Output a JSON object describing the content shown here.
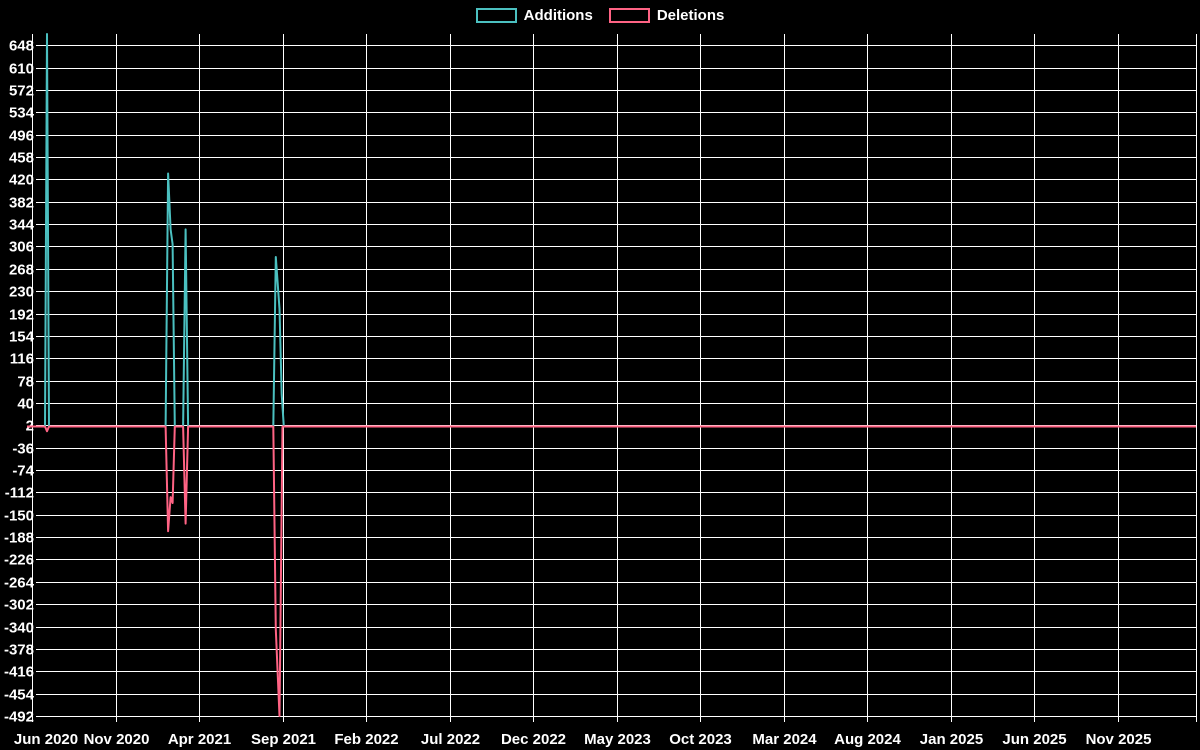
{
  "legend": {
    "position": "top",
    "items": [
      {
        "label": "Additions",
        "color": "#4bc0c0"
      },
      {
        "label": "Deletions",
        "color": "#ff6384"
      }
    ]
  },
  "chart_data": {
    "type": "line",
    "title": "",
    "background_color": "#000000",
    "grid_color": "#ffffff",
    "text_color": "#ffffff",
    "grid": true,
    "legend_position": "top",
    "x_axis": {
      "tick_labels": [
        "Jun 2020",
        "Nov 2020",
        "Apr 2021",
        "Sep 2021",
        "Feb 2022",
        "Jul 2022",
        "Dec 2022",
        "May 2023",
        "Oct 2023",
        "Mar 2024",
        "Aug 2024",
        "Jan 2025",
        "Jun 2025",
        "Nov 2025"
      ],
      "months_between_ticks": 5,
      "start_month": "Jun 2020",
      "end_month": "Nov 2025"
    },
    "y_axis": {
      "ticks": [
        648,
        610,
        572,
        534,
        496,
        458,
        420,
        382,
        344,
        306,
        268,
        230,
        192,
        154,
        116,
        78,
        40,
        2,
        -36,
        -74,
        -112,
        -150,
        -188,
        -226,
        -264,
        -302,
        -340,
        -378,
        -416,
        -454,
        -492
      ],
      "tick_step": 38,
      "min": -492,
      "max": 667
    },
    "series": [
      {
        "name": "Additions",
        "color": "#4bc0c0",
        "line_width": 2,
        "baseline_value": 0,
        "points": [
          {
            "month": -0.3,
            "value": 0
          },
          {
            "month": 0.78,
            "value": 0
          },
          {
            "month": 0.9,
            "value": 667
          },
          {
            "month": 1.02,
            "value": 0
          },
          {
            "month": 8.0,
            "value": 0
          },
          {
            "month": 8.15,
            "value": 430
          },
          {
            "month": 8.3,
            "value": 335
          },
          {
            "month": 8.42,
            "value": 310
          },
          {
            "month": 8.55,
            "value": 0
          },
          {
            "month": 9.05,
            "value": 0
          },
          {
            "month": 9.2,
            "value": 335
          },
          {
            "month": 9.35,
            "value": 0
          },
          {
            "month": 14.45,
            "value": 0
          },
          {
            "month": 14.6,
            "value": 288
          },
          {
            "month": 14.82,
            "value": 200
          },
          {
            "month": 14.95,
            "value": 55
          },
          {
            "month": 15.08,
            "value": 0
          },
          {
            "month": 69.7,
            "value": 0
          }
        ]
      },
      {
        "name": "Deletions",
        "color": "#ff6384",
        "line_width": 2,
        "baseline_value": 0,
        "points": [
          {
            "month": -0.3,
            "value": 0
          },
          {
            "month": 0.78,
            "value": 0
          },
          {
            "month": 0.9,
            "value": -8
          },
          {
            "month": 1.02,
            "value": 0
          },
          {
            "month": 8.0,
            "value": 0
          },
          {
            "month": 8.15,
            "value": -178
          },
          {
            "month": 8.3,
            "value": -120
          },
          {
            "month": 8.42,
            "value": -130
          },
          {
            "month": 8.55,
            "value": 0
          },
          {
            "month": 9.05,
            "value": 0
          },
          {
            "month": 9.2,
            "value": -165
          },
          {
            "month": 9.35,
            "value": 0
          },
          {
            "month": 14.45,
            "value": 0
          },
          {
            "month": 14.6,
            "value": -345
          },
          {
            "month": 14.82,
            "value": -492
          },
          {
            "month": 15.0,
            "value": 0
          },
          {
            "month": 69.7,
            "value": 0
          }
        ]
      }
    ]
  }
}
